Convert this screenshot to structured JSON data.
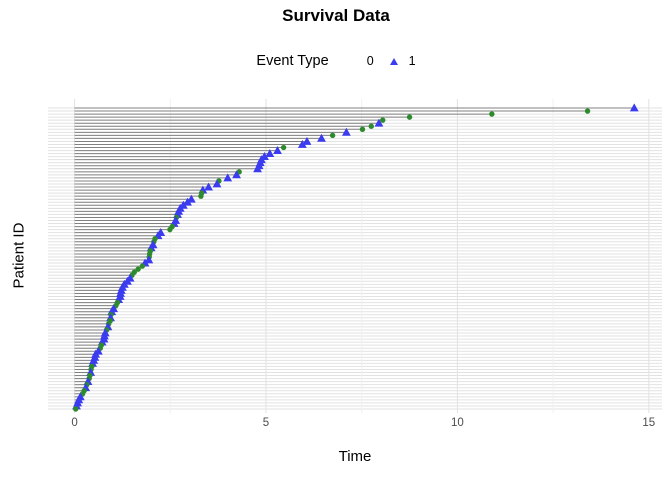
{
  "chart_data": {
    "type": "scatter",
    "style": "horizontal-segment lollipop (survival plot, one row per patient, segment from 0 to event time)",
    "title": "Survival Data",
    "xlabel": "Time",
    "ylabel": "Patient ID",
    "xlim": [
      0,
      15
    ],
    "x_ticks": [
      0,
      5,
      10,
      15
    ],
    "x_minor_ticks": [
      2.5,
      7.5,
      12.5
    ],
    "y_axis_tick_labels": "none",
    "grid": "on",
    "legend": {
      "title": "Event Type",
      "position": "top",
      "entries": [
        {
          "label": "0",
          "marker": "circle",
          "color": "#2d8b2d"
        },
        {
          "label": "1",
          "marker": "triangle",
          "color": "#3b3bef"
        }
      ]
    },
    "colors": {
      "segment": "#808080",
      "grid_major": "#e2e2e2",
      "grid_minor": "#f0f0f0",
      "tick_label": "#4d4d4d",
      "event0": "#2d8b2d",
      "event1": "#3b3bef"
    },
    "patients_note": "rows ordered top (longest time) to bottom (shortest); values [time, event]",
    "patients": [
      [
        14.62,
        1
      ],
      [
        13.4,
        0
      ],
      [
        10.9,
        0
      ],
      [
        8.75,
        0
      ],
      [
        8.05,
        0
      ],
      [
        7.95,
        1
      ],
      [
        7.75,
        0
      ],
      [
        7.52,
        0
      ],
      [
        7.1,
        1
      ],
      [
        6.74,
        0
      ],
      [
        6.45,
        1
      ],
      [
        6.07,
        1
      ],
      [
        5.95,
        1
      ],
      [
        5.46,
        0
      ],
      [
        5.3,
        1
      ],
      [
        5.1,
        1
      ],
      [
        4.96,
        1
      ],
      [
        4.88,
        1
      ],
      [
        4.85,
        1
      ],
      [
        4.82,
        1
      ],
      [
        4.78,
        1
      ],
      [
        4.3,
        0
      ],
      [
        4.23,
        1
      ],
      [
        4.0,
        1
      ],
      [
        3.77,
        0
      ],
      [
        3.72,
        1
      ],
      [
        3.5,
        1
      ],
      [
        3.35,
        1
      ],
      [
        3.32,
        0
      ],
      [
        3.3,
        0
      ],
      [
        3.05,
        1
      ],
      [
        2.95,
        1
      ],
      [
        2.84,
        1
      ],
      [
        2.76,
        1
      ],
      [
        2.72,
        1
      ],
      [
        2.69,
        1
      ],
      [
        2.66,
        0
      ],
      [
        2.64,
        1
      ],
      [
        2.6,
        1
      ],
      [
        2.55,
        0
      ],
      [
        2.49,
        0
      ],
      [
        2.25,
        1
      ],
      [
        2.18,
        1
      ],
      [
        2.1,
        0
      ],
      [
        2.07,
        0
      ],
      [
        2.05,
        1
      ],
      [
        2.0,
        1
      ],
      [
        1.98,
        0
      ],
      [
        1.96,
        0
      ],
      [
        1.95,
        0
      ],
      [
        1.94,
        1
      ],
      [
        1.84,
        1
      ],
      [
        1.77,
        0
      ],
      [
        1.66,
        0
      ],
      [
        1.56,
        0
      ],
      [
        1.5,
        0
      ],
      [
        1.45,
        1
      ],
      [
        1.38,
        1
      ],
      [
        1.3,
        1
      ],
      [
        1.25,
        1
      ],
      [
        1.22,
        1
      ],
      [
        1.2,
        1
      ],
      [
        1.19,
        1
      ],
      [
        1.15,
        1
      ],
      [
        1.12,
        0
      ],
      [
        1.08,
        0
      ],
      [
        1.02,
        1
      ],
      [
        0.97,
        1
      ],
      [
        0.95,
        0
      ],
      [
        0.94,
        1
      ],
      [
        0.93,
        0
      ],
      [
        0.89,
        0
      ],
      [
        0.87,
        1
      ],
      [
        0.84,
        0
      ],
      [
        0.8,
        1
      ],
      [
        0.78,
        1
      ],
      [
        0.77,
        1
      ],
      [
        0.72,
        1
      ],
      [
        0.7,
        0
      ],
      [
        0.67,
        0
      ],
      [
        0.62,
        1
      ],
      [
        0.55,
        1
      ],
      [
        0.53,
        1
      ],
      [
        0.5,
        1
      ],
      [
        0.47,
        1
      ],
      [
        0.45,
        0
      ],
      [
        0.43,
        0
      ],
      [
        0.42,
        1
      ],
      [
        0.4,
        0
      ],
      [
        0.38,
        0
      ],
      [
        0.35,
        1
      ],
      [
        0.32,
        0
      ],
      [
        0.29,
        1
      ],
      [
        0.25,
        0
      ],
      [
        0.21,
        0
      ],
      [
        0.15,
        1
      ],
      [
        0.11,
        1
      ],
      [
        0.08,
        1
      ],
      [
        0.05,
        1
      ],
      [
        0.03,
        0
      ]
    ]
  }
}
